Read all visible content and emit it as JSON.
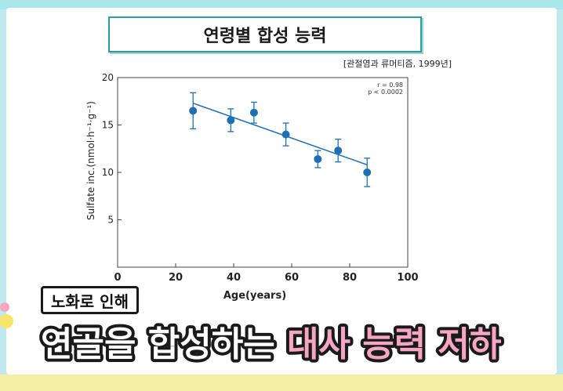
{
  "title": "연령별 합성 능력",
  "source": "[관절염과 류머티즘, 1999년]",
  "caption_box": "노화로 인해",
  "caption_main_white": "연골을 합성하는 ",
  "caption_main_pink": "대사 능력 저하",
  "colors": {
    "accent": "#2a9e9a",
    "marker": "#1f6fb5",
    "pink": "#e85a8f"
  },
  "chart_data": {
    "type": "scatter",
    "xlabel": "Age(years)",
    "ylabel": "Sulfate inc.(nmol·h⁻¹·g⁻¹)",
    "xlim": [
      0,
      100
    ],
    "ylim": [
      0,
      20
    ],
    "xticks": [
      "0",
      "20",
      "40",
      "60",
      "80",
      "100"
    ],
    "yticks": [
      "5",
      "10",
      "15",
      "20"
    ],
    "annotation": [
      "r = 0.98",
      "p < 0.0002"
    ],
    "points": [
      {
        "x": 26,
        "y": 16.5,
        "err": 1.9
      },
      {
        "x": 39,
        "y": 15.5,
        "err": 1.2
      },
      {
        "x": 47,
        "y": 16.3,
        "err": 1.1
      },
      {
        "x": 58,
        "y": 14.0,
        "err": 1.2
      },
      {
        "x": 69,
        "y": 11.4,
        "err": 0.9
      },
      {
        "x": 76,
        "y": 12.3,
        "err": 1.2
      },
      {
        "x": 86,
        "y": 10.0,
        "err": 1.5
      }
    ],
    "trend": {
      "x1": 26,
      "y1": 17.3,
      "x2": 86,
      "y2": 10.8
    },
    "grid": false
  }
}
